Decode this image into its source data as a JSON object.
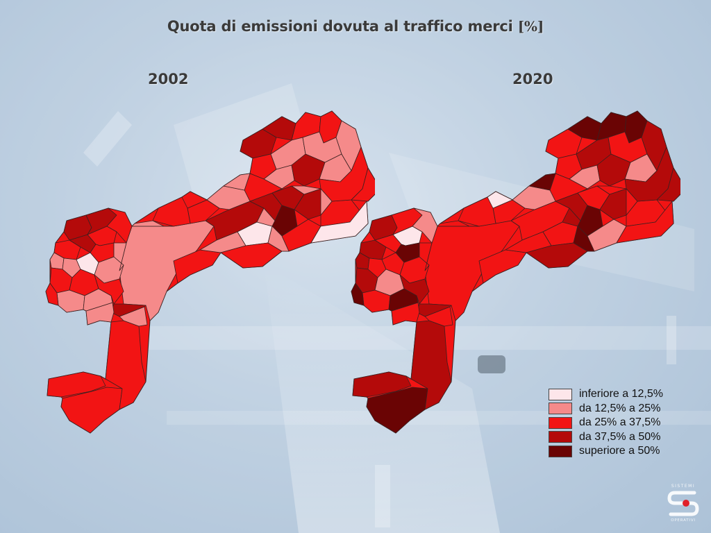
{
  "title": {
    "text": "Quota di emissioni dovuta al traffico merci",
    "unit": "[%]"
  },
  "maps": [
    {
      "year": "2002",
      "class_counts": {
        "inferiore": 3,
        "da_12_25": 22,
        "da_25_37": 14,
        "da_37_50": 11,
        "superiore": 1
      }
    },
    {
      "year": "2020",
      "class_counts": {
        "inferiore": 2,
        "da_12_25": 6,
        "da_25_37": 16,
        "da_37_50": 17,
        "superiore": 10
      }
    }
  ],
  "legend": {
    "items": [
      {
        "label": "inferiore a 12,5%",
        "color": "#fde6ea"
      },
      {
        "label": "da 12,5% a 25%",
        "color": "#f58a8a"
      },
      {
        "label": "da 25% a 37,5%",
        "color": "#f21414"
      },
      {
        "label": "da 37,5% a 50%",
        "color": "#b40a0a"
      },
      {
        "label": "superiore a 50%",
        "color": "#6a0404"
      }
    ]
  },
  "logo": {
    "top_text": "SISTEMI",
    "bottom_text": "OPERATIVI",
    "icon": "sistemi-operativi-logo-icon"
  }
}
